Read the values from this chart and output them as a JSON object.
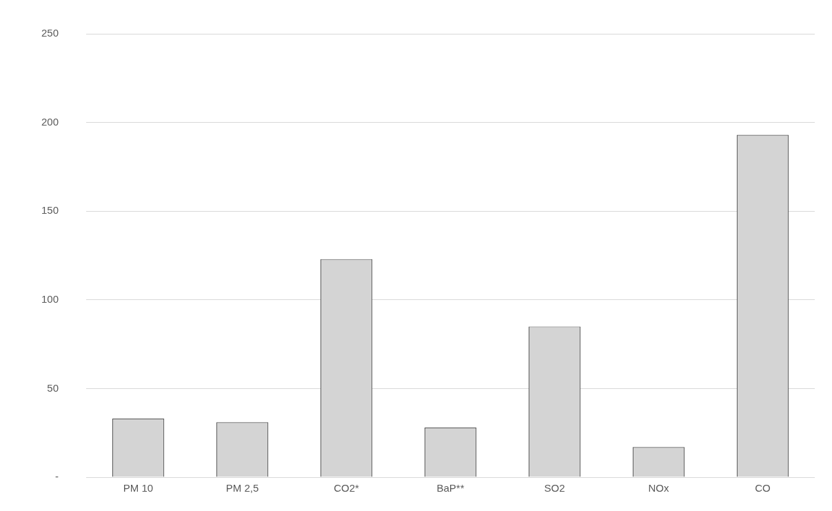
{
  "chart_data": {
    "type": "bar",
    "categories": [
      "PM 10",
      "PM 2,5",
      "CO2*",
      "BaP**",
      "SO2",
      "NOx",
      "CO"
    ],
    "values": [
      33,
      31,
      123,
      28,
      85,
      17,
      193
    ],
    "color": "#d4d4d4",
    "ylim": [
      0,
      250
    ],
    "yticks": [
      {
        "value": 0,
        "label": "-"
      },
      50,
      100,
      150,
      200,
      250
    ],
    "grid": "y",
    "legend": false
  }
}
